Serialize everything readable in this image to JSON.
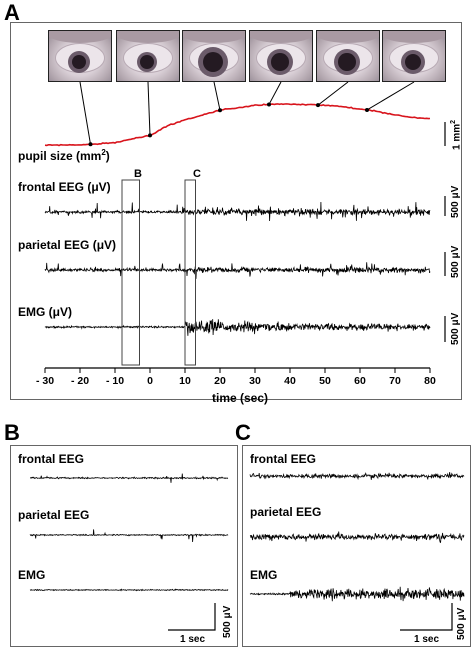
{
  "panelA": {
    "label": "A",
    "pupil_label": "pupil size (mm",
    "pupil_label_sup": "2",
    "pupil_label_close": ")",
    "eeg_frontal_label": "frontal EEG (μV)",
    "eeg_parietal_label": "parietal EEG (μV)",
    "emg_label": "EMG (μV)",
    "box_b_label": "B",
    "box_c_label": "C",
    "scale_area": "1 mm",
    "scale_area_sup": "2",
    "scale_uv_1": "500 μV",
    "scale_uv_2": "500 μV",
    "scale_uv_3": "500 μV",
    "xlabel": "time (sec)",
    "xticks": [
      "- 30",
      "- 20",
      "- 10",
      "0",
      "10",
      "20",
      "30",
      "40",
      "50",
      "60",
      "70",
      "80"
    ],
    "pupil_points": [
      [
        -30,
        -0.7
      ],
      [
        -20,
        -0.7
      ],
      [
        -10,
        -0.6
      ],
      [
        0,
        -0.3
      ],
      [
        5,
        0.1
      ],
      [
        10,
        0.35
      ],
      [
        15,
        0.55
      ],
      [
        20,
        0.75
      ],
      [
        25,
        0.85
      ],
      [
        30,
        0.95
      ],
      [
        35,
        1.0
      ],
      [
        40,
        1.0
      ],
      [
        45,
        0.98
      ],
      [
        50,
        0.95
      ],
      [
        55,
        0.9
      ],
      [
        60,
        0.8
      ],
      [
        65,
        0.7
      ],
      [
        70,
        0.55
      ],
      [
        75,
        0.45
      ],
      [
        80,
        0.4
      ]
    ],
    "eye_times": [
      -17,
      0,
      20,
      34,
      48,
      62
    ],
    "eye_pupil_sizes": [
      0.34,
      0.32,
      0.46,
      0.4,
      0.4,
      0.38
    ]
  },
  "panelB": {
    "label": "B",
    "frontal": "frontal EEG",
    "parietal": "parietal EEG",
    "emg": "EMG",
    "scale_uv": "500 μV",
    "scale_t": "1 sec"
  },
  "panelC": {
    "label": "C",
    "frontal": "frontal EEG",
    "parietal": "parietal EEG",
    "emg": "EMG",
    "scale_uv": "500 μV",
    "scale_t": "1 sec"
  },
  "colors": {
    "pupil_trace": "#d8141c",
    "trace": "#000000",
    "frame": "#555555"
  }
}
